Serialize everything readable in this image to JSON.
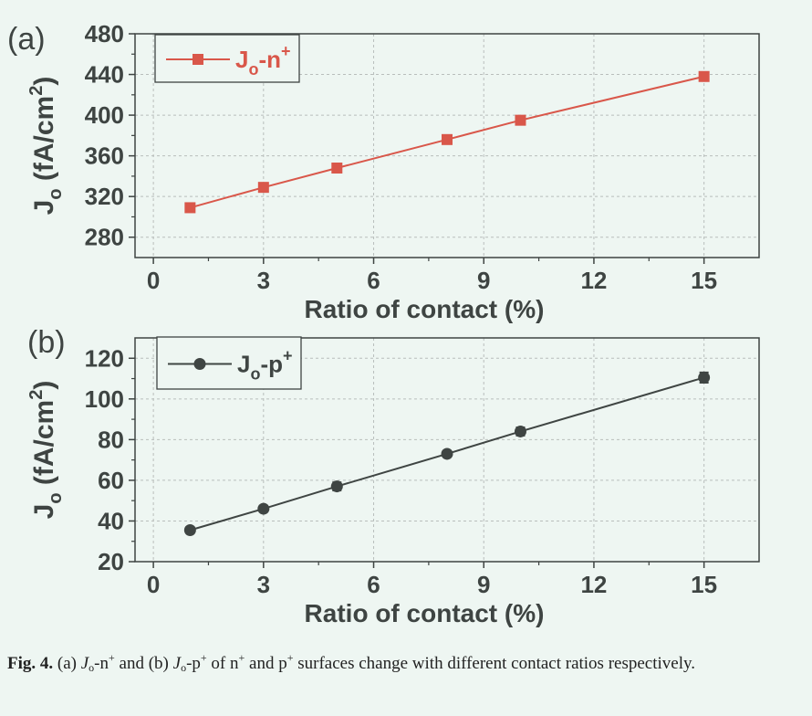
{
  "chart_data": [
    {
      "type": "line",
      "panel_label": "(a)",
      "xlabel": "Ratio of contact (%)",
      "ylabel": {
        "main": "J",
        "sub": "o",
        "rest": " (fA/cm",
        "sup": "2",
        "end": ")"
      },
      "xlim": [
        -0.5,
        16.5
      ],
      "ylim": [
        260,
        480
      ],
      "xticks": [
        0,
        3,
        6,
        9,
        12,
        15
      ],
      "yticks": [
        280,
        320,
        360,
        400,
        440,
        480
      ],
      "grid": true,
      "legend_placement": "top-left",
      "series": [
        {
          "name": {
            "main": "J",
            "sub": "o",
            "rest": "-n",
            "sup": "+"
          },
          "color": "#d9574a",
          "marker": "square",
          "x": [
            1,
            3,
            5,
            8,
            10,
            15
          ],
          "y": [
            309,
            329,
            348,
            376,
            395,
            438
          ]
        }
      ]
    },
    {
      "type": "line",
      "panel_label": "(b)",
      "xlabel": "Ratio of contact (%)",
      "ylabel": {
        "main": "J",
        "sub": "o",
        "rest": " (fA/cm",
        "sup": "2",
        "end": ")"
      },
      "xlim": [
        -0.5,
        16.5
      ],
      "ylim": [
        20,
        130
      ],
      "xticks": [
        0,
        3,
        6,
        9,
        12,
        15
      ],
      "yticks": [
        20,
        40,
        60,
        80,
        100,
        120
      ],
      "grid": true,
      "legend_placement": "top-left",
      "series": [
        {
          "name": {
            "main": "J",
            "sub": "o",
            "rest": "-p",
            "sup": "+"
          },
          "color": "#3f4543",
          "marker": "circle",
          "error_bars": true,
          "x": [
            1,
            3,
            5,
            8,
            10,
            15
          ],
          "y": [
            35.5,
            46,
            57,
            73,
            84,
            110.5
          ],
          "err": [
            1.5,
            1.5,
            2,
            1.5,
            2,
            2.5
          ]
        }
      ]
    }
  ],
  "caption": {
    "fig": "Fig. 4.",
    "a": "(a)",
    "j1": "J",
    "o1": "o",
    "n": "-n",
    "plus1": "+",
    "and1": "and",
    "b": "(b)",
    "j2": "J",
    "o2": "o",
    "p": "-p",
    "plus2": "+",
    "of": "of n",
    "plus3": "+",
    "and2": "and p",
    "plus4": "+",
    "rest": "surfaces change with different contact ratios respectively."
  }
}
